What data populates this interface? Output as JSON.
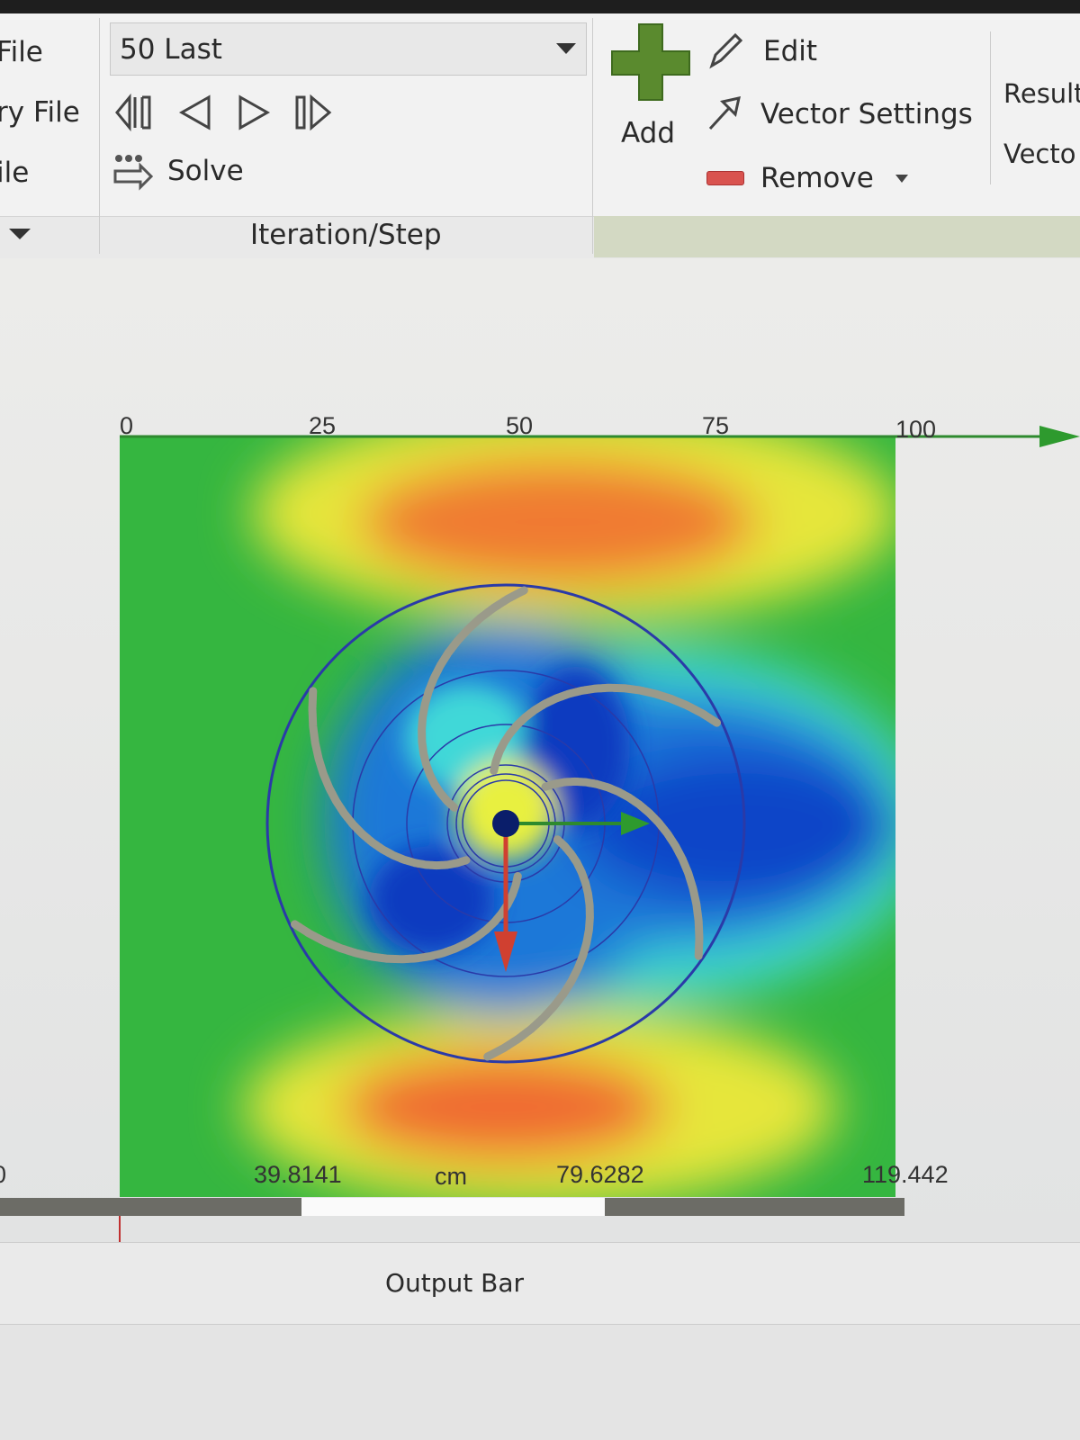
{
  "ribbon": {
    "left": [
      "File",
      "ry File",
      "ile"
    ],
    "combo": "50 Last",
    "solve": "Solve",
    "group": "Iteration/Step",
    "add": "Add",
    "edit": "Edit",
    "vector_settings": "Vector Settings",
    "remove": "Remove",
    "right": [
      "Result",
      "Vecto"
    ]
  },
  "view": {
    "top_ruler": [
      "0",
      "25",
      "50",
      "75",
      "100"
    ],
    "bottom_ruler": [
      "0",
      "39.8141",
      "79.6282",
      "119.442"
    ],
    "unit": "cm"
  },
  "output_bar": {
    "title": "Output Bar"
  }
}
